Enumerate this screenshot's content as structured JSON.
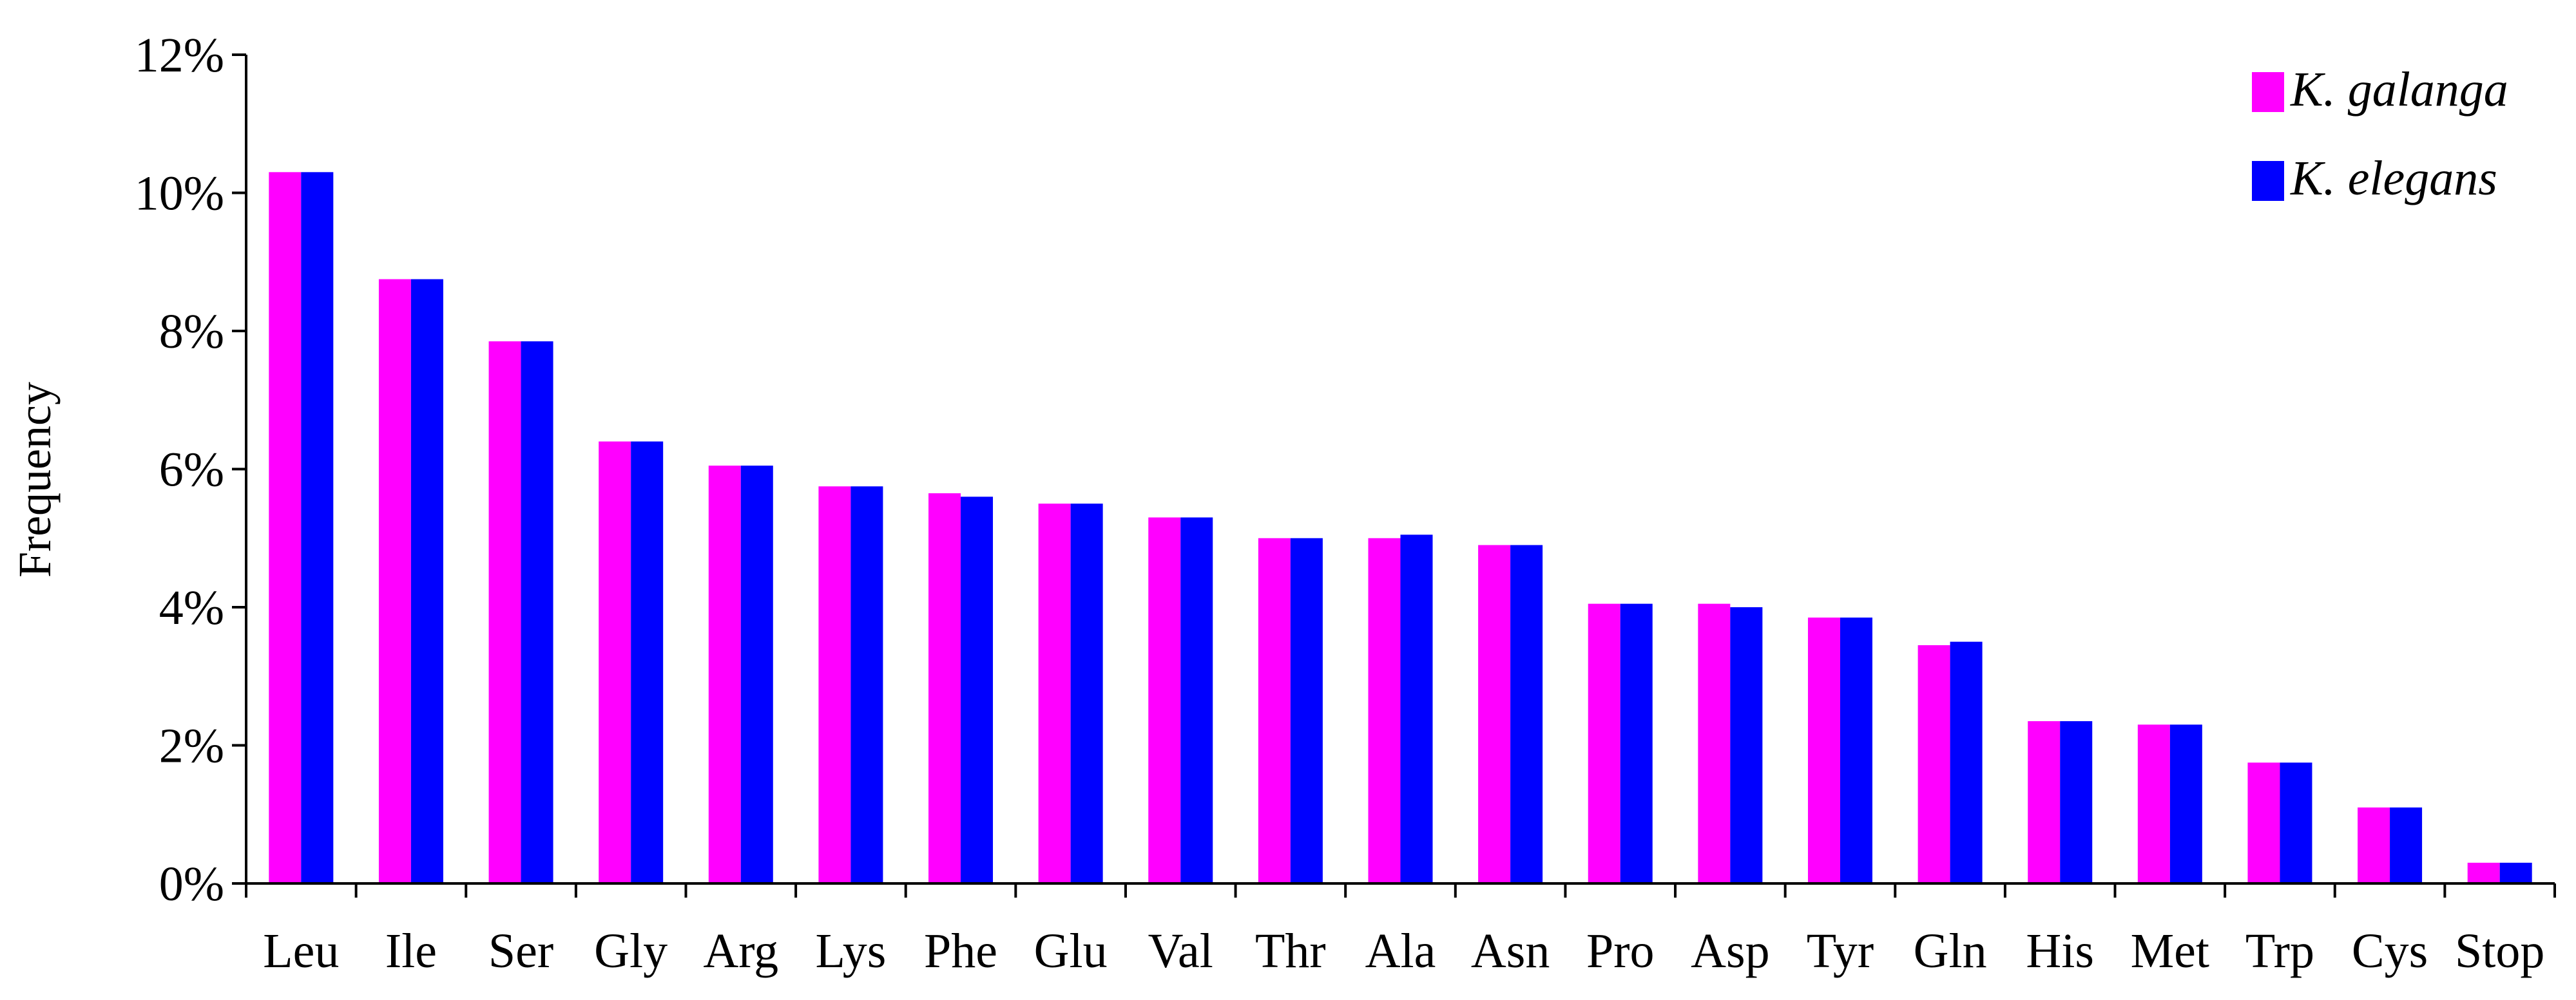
{
  "chart_data": {
    "type": "bar",
    "ylabel": "Frequency",
    "xlabel": "",
    "ylim": [
      0,
      12
    ],
    "y_unit": "%",
    "yticks": [
      "0%",
      "2%",
      "4%",
      "6%",
      "8%",
      "10%",
      "12%"
    ],
    "categories": [
      "Leu",
      "Ile",
      "Ser",
      "Gly",
      "Arg",
      "Lys",
      "Phe",
      "Glu",
      "Val",
      "Thr",
      "Ala",
      "Asn",
      "Pro",
      "Asp",
      "Tyr",
      "Gln",
      "His",
      "Met",
      "Trp",
      "Cys",
      "Stop"
    ],
    "series": [
      {
        "name": "K. galanga",
        "color": "#ff00ff",
        "values": [
          10.3,
          8.75,
          7.85,
          6.4,
          6.05,
          5.75,
          5.65,
          5.5,
          5.3,
          5.0,
          5.0,
          4.9,
          4.05,
          4.05,
          3.85,
          3.45,
          2.35,
          2.3,
          1.75,
          1.1,
          0.3
        ]
      },
      {
        "name": "K. elegans",
        "color": "#0000ff",
        "values": [
          10.3,
          8.75,
          7.85,
          6.4,
          6.05,
          5.75,
          5.6,
          5.5,
          5.3,
          5.0,
          5.05,
          4.9,
          4.05,
          4.0,
          3.85,
          3.5,
          2.35,
          2.3,
          1.75,
          1.1,
          0.3
        ]
      }
    ],
    "grid": false,
    "legend_position": "top-right"
  }
}
